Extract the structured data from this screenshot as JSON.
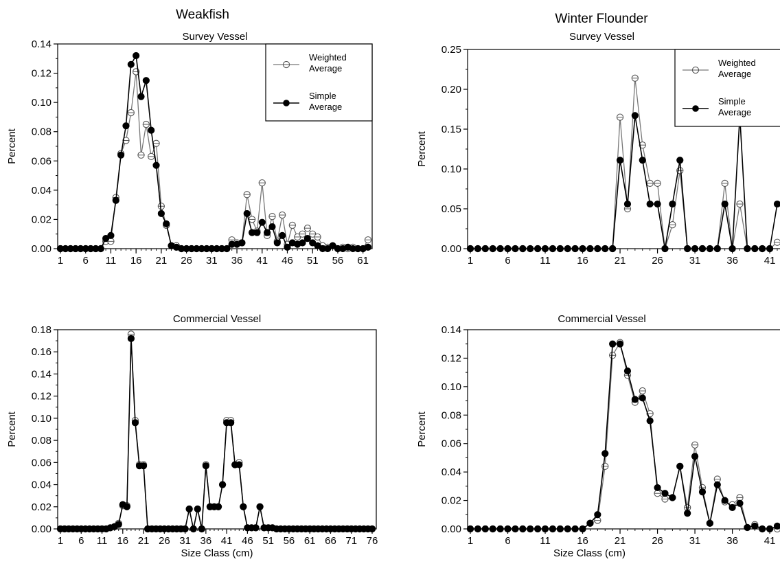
{
  "figure": {
    "species_left": "Weakfish",
    "species_right": "Winter Flounder"
  },
  "legend": {
    "weighted_line1": "Weighted",
    "weighted_line2": "Average",
    "simple_line1": "Simple",
    "simple_line2": "Average"
  },
  "chart_data": [
    {
      "type": "line",
      "species": "Weakfish",
      "title": "Survey Vessel",
      "xlabel": "",
      "ylabel": "Percent",
      "xlim": [
        1,
        62
      ],
      "ylim": [
        0,
        0.14
      ],
      "xticks": [
        1,
        6,
        11,
        16,
        21,
        26,
        31,
        36,
        41,
        46,
        51,
        56,
        61
      ],
      "yticks": [
        "0.00",
        "0.02",
        "0.04",
        "0.06",
        "0.08",
        "0.10",
        "0.12",
        "0.14"
      ],
      "legend_position": "top-right",
      "x_start": 1,
      "series": [
        {
          "name": "Weighted Average",
          "values": [
            0,
            0,
            0,
            0,
            0,
            0,
            0,
            0,
            0,
            0.005,
            0.005,
            0.035,
            0.065,
            0.074,
            0.093,
            0.121,
            0.064,
            0.085,
            0.063,
            0.072,
            0.029,
            0.016,
            0.002,
            0.002,
            0,
            0,
            0,
            0,
            0,
            0,
            0,
            0,
            0,
            0,
            0.006,
            0.004,
            0.004,
            0.037,
            0.02,
            0.012,
            0.045,
            0.009,
            0.022,
            0.005,
            0.023,
            0.003,
            0.016,
            0.008,
            0.01,
            0.014,
            0.01,
            0.008,
            0.002,
            0.001,
            0.002,
            0,
            0.001,
            0,
            0.001,
            0,
            0,
            0.006
          ]
        },
        {
          "name": "Simple Average",
          "values": [
            0,
            0,
            0,
            0,
            0,
            0,
            0,
            0,
            0,
            0.007,
            0.009,
            0.033,
            0.064,
            0.084,
            0.126,
            0.132,
            0.104,
            0.115,
            0.081,
            0.057,
            0.024,
            0.017,
            0.002,
            0.001,
            0,
            0,
            0,
            0,
            0,
            0,
            0,
            0,
            0,
            0,
            0.003,
            0.003,
            0.004,
            0.024,
            0.011,
            0.011,
            0.018,
            0.011,
            0.015,
            0.004,
            0.009,
            0.001,
            0.004,
            0.003,
            0.004,
            0.007,
            0.004,
            0.002,
            0,
            0,
            0.002,
            0,
            0,
            0.001,
            0,
            0,
            0,
            0.001
          ]
        }
      ]
    },
    {
      "type": "line",
      "species": "Winter Flounder",
      "title": "Survey Vessel",
      "xlabel": "",
      "ylabel": "Percent",
      "xlim": [
        1,
        42
      ],
      "ylim": [
        0,
        0.25
      ],
      "xticks": [
        1,
        6,
        11,
        16,
        21,
        26,
        31,
        36,
        41
      ],
      "yticks": [
        "0.00",
        "0.05",
        "0.10",
        "0.15",
        "0.20",
        "0.25"
      ],
      "legend_position": "top-right",
      "x_start": 1,
      "series": [
        {
          "name": "Weighted Average",
          "values": [
            0,
            0,
            0,
            0,
            0,
            0,
            0,
            0,
            0,
            0,
            0,
            0,
            0,
            0,
            0,
            0,
            0,
            0,
            0,
            0,
            0.165,
            0.05,
            0.214,
            0.13,
            0.082,
            0.082,
            0,
            0.03,
            0.098,
            0,
            0,
            0,
            0,
            0,
            0.082,
            0,
            0.056,
            0,
            0,
            0,
            0,
            0.008
          ]
        },
        {
          "name": "Simple Average",
          "values": [
            0,
            0,
            0,
            0,
            0,
            0,
            0,
            0,
            0,
            0,
            0,
            0,
            0,
            0,
            0,
            0,
            0,
            0,
            0,
            0,
            0.111,
            0.056,
            0.167,
            0.111,
            0.056,
            0.056,
            0,
            0.056,
            0.111,
            0,
            0,
            0,
            0,
            0,
            0.056,
            0,
            0.167,
            0,
            0,
            0,
            0,
            0.056
          ]
        }
      ]
    },
    {
      "type": "line",
      "species": "Weakfish",
      "title": "Commercial Vessel",
      "xlabel": "Size Class (cm)",
      "ylabel": "Percent",
      "xlim": [
        1,
        76
      ],
      "ylim": [
        0,
        0.18
      ],
      "xticks": [
        1,
        6,
        11,
        16,
        21,
        26,
        31,
        36,
        41,
        46,
        51,
        56,
        61,
        66,
        71,
        76
      ],
      "yticks": [
        "0.00",
        "0.02",
        "0.04",
        "0.06",
        "0.08",
        "0.10",
        "0.12",
        "0.14",
        "0.16",
        "0.18"
      ],
      "x_start": 1,
      "series": [
        {
          "name": "Weighted Average",
          "values": [
            0,
            0,
            0,
            0,
            0,
            0,
            0,
            0,
            0,
            0,
            0,
            0,
            0.001,
            0.002,
            0.005,
            0.021,
            0.021,
            0.176,
            0.098,
            0.058,
            0.058,
            0,
            0,
            0,
            0,
            0,
            0,
            0,
            0,
            0,
            0,
            0.018,
            0,
            0.018,
            0,
            0.058,
            0.02,
            0.02,
            0.02,
            0.04,
            0.098,
            0.098,
            0.058,
            0.06,
            0.02,
            0.001,
            0.001,
            0.001,
            0.02,
            0.001,
            0.001,
            0.001,
            0,
            0,
            0,
            0,
            0,
            0,
            0,
            0,
            0,
            0,
            0,
            0,
            0,
            0,
            0,
            0,
            0,
            0,
            0,
            0,
            0,
            0,
            0,
            0
          ]
        },
        {
          "name": "Simple Average",
          "values": [
            0,
            0,
            0,
            0,
            0,
            0,
            0,
            0,
            0,
            0,
            0,
            0,
            0.001,
            0.002,
            0.004,
            0.022,
            0.02,
            0.172,
            0.096,
            0.057,
            0.057,
            0,
            0,
            0,
            0,
            0,
            0,
            0,
            0,
            0,
            0,
            0.018,
            0,
            0.018,
            0,
            0.057,
            0.02,
            0.02,
            0.02,
            0.04,
            0.096,
            0.096,
            0.058,
            0.058,
            0.02,
            0.001,
            0.001,
            0.001,
            0.02,
            0.001,
            0.001,
            0.001,
            0,
            0,
            0,
            0,
            0,
            0,
            0,
            0,
            0,
            0,
            0,
            0,
            0,
            0,
            0,
            0,
            0,
            0,
            0,
            0,
            0,
            0,
            0,
            0
          ]
        }
      ]
    },
    {
      "type": "line",
      "species": "Winter Flounder",
      "title": "Commercial Vessel",
      "xlabel": "Size Class (cm)",
      "ylabel": "Percent",
      "xlim": [
        1,
        42
      ],
      "ylim": [
        0,
        0.14
      ],
      "xticks": [
        1,
        6,
        11,
        16,
        21,
        26,
        31,
        36,
        41
      ],
      "yticks": [
        "0.00",
        "0.02",
        "0.04",
        "0.06",
        "0.08",
        "0.10",
        "0.12",
        "0.14"
      ],
      "x_start": 1,
      "series": [
        {
          "name": "Weighted Average",
          "values": [
            0,
            0,
            0,
            0,
            0,
            0,
            0,
            0,
            0,
            0,
            0,
            0,
            0,
            0,
            0,
            0,
            0.004,
            0.006,
            0.044,
            0.122,
            0.131,
            0.108,
            0.089,
            0.097,
            0.081,
            0.025,
            0.021,
            0.022,
            0.044,
            0.015,
            0.059,
            0.029,
            0.004,
            0.035,
            0.019,
            0.017,
            0.022,
            0.001,
            0.003,
            0,
            0,
            0
          ]
        },
        {
          "name": "Simple Average",
          "values": [
            0,
            0,
            0,
            0,
            0,
            0,
            0,
            0,
            0,
            0,
            0,
            0,
            0,
            0,
            0,
            0,
            0.004,
            0.01,
            0.053,
            0.13,
            0.13,
            0.111,
            0.091,
            0.092,
            0.076,
            0.029,
            0.025,
            0.022,
            0.044,
            0.011,
            0.051,
            0.026,
            0.004,
            0.031,
            0.02,
            0.015,
            0.018,
            0.001,
            0.002,
            0,
            0,
            0.002
          ]
        }
      ]
    }
  ]
}
